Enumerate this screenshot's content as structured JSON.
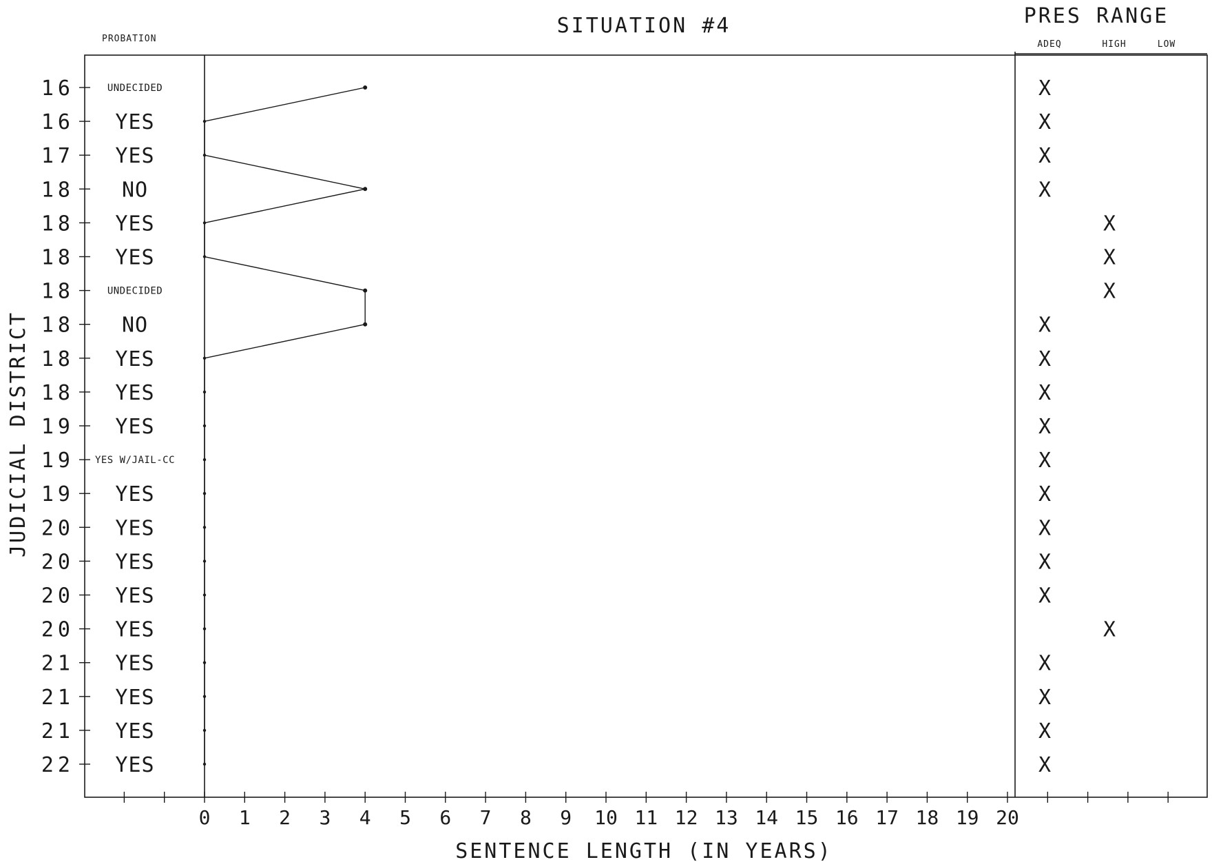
{
  "chart_data": {
    "type": "line",
    "title": "SITUATION #4",
    "xlabel": "SENTENCE LENGTH (IN YEARS)",
    "ylabel": "JUDICIAL DISTRICT",
    "probation_header": "PROBATION",
    "pres_range": {
      "header": "PRES RANGE",
      "columns": [
        "ADEQ",
        "HIGH",
        "LOW"
      ],
      "mark": "X"
    },
    "xlim": [
      0,
      20
    ],
    "x_ticks": [
      "0",
      "1",
      "2",
      "3",
      "4",
      "5",
      "6",
      "7",
      "8",
      "9",
      "10",
      "11",
      "12",
      "13",
      "14",
      "15",
      "16",
      "17",
      "18",
      "19",
      "20"
    ],
    "rows": [
      {
        "district": "16",
        "probation": "UNDECIDED",
        "sentence": 4,
        "pres_range": "ADEQ"
      },
      {
        "district": "16",
        "probation": "YES",
        "sentence": 0,
        "pres_range": "ADEQ"
      },
      {
        "district": "17",
        "probation": "YES",
        "sentence": 0,
        "pres_range": "ADEQ"
      },
      {
        "district": "18",
        "probation": "NO",
        "sentence": 4,
        "pres_range": "ADEQ"
      },
      {
        "district": "18",
        "probation": "YES",
        "sentence": 0,
        "pres_range": "HIGH"
      },
      {
        "district": "18",
        "probation": "YES",
        "sentence": 0,
        "pres_range": "HIGH"
      },
      {
        "district": "18",
        "probation": "UNDECIDED",
        "sentence": 4,
        "pres_range": "HIGH"
      },
      {
        "district": "18",
        "probation": "NO",
        "sentence": 4,
        "pres_range": "ADEQ"
      },
      {
        "district": "18",
        "probation": "YES",
        "sentence": 0,
        "pres_range": "ADEQ"
      },
      {
        "district": "18",
        "probation": "YES",
        "sentence": 0,
        "pres_range": "ADEQ"
      },
      {
        "district": "19",
        "probation": "YES",
        "sentence": 0,
        "pres_range": "ADEQ"
      },
      {
        "district": "19",
        "probation": "YES W/JAIL-CC",
        "sentence": 0,
        "pres_range": "ADEQ"
      },
      {
        "district": "19",
        "probation": "YES",
        "sentence": 0,
        "pres_range": "ADEQ"
      },
      {
        "district": "20",
        "probation": "YES",
        "sentence": 0,
        "pres_range": "ADEQ"
      },
      {
        "district": "20",
        "probation": "YES",
        "sentence": 0,
        "pres_range": "ADEQ"
      },
      {
        "district": "20",
        "probation": "YES",
        "sentence": 0,
        "pres_range": "ADEQ"
      },
      {
        "district": "20",
        "probation": "YES",
        "sentence": 0,
        "pres_range": "HIGH"
      },
      {
        "district": "21",
        "probation": "YES",
        "sentence": 0,
        "pres_range": "ADEQ"
      },
      {
        "district": "21",
        "probation": "YES",
        "sentence": 0,
        "pres_range": "ADEQ"
      },
      {
        "district": "21",
        "probation": "YES",
        "sentence": 0,
        "pres_range": "ADEQ"
      },
      {
        "district": "22",
        "probation": "YES",
        "sentence": 0,
        "pres_range": "ADEQ"
      }
    ]
  }
}
